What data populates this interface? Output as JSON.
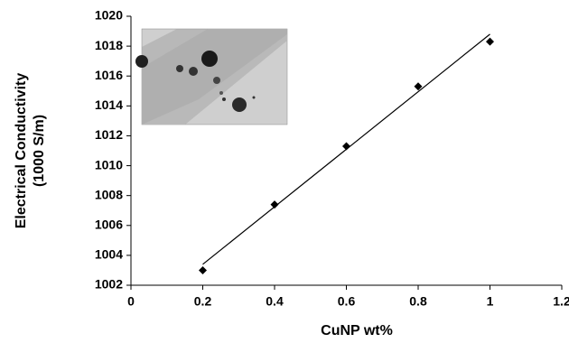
{
  "chart_data": {
    "type": "scatter",
    "x_label": "CuNP wt%",
    "y_label": [
      "Electrical Conductivity",
      "(1000 S/m)"
    ],
    "x": [
      0.2,
      0.4,
      0.6,
      0.8,
      1.0
    ],
    "values": [
      1003.0,
      1007.4,
      1011.3,
      1015.3,
      1018.3
    ],
    "color": "#000000",
    "trendline": {
      "x": [
        0.2,
        1.0
      ],
      "values": [
        1003.4,
        1018.8
      ],
      "color": "#000000"
    },
    "xlim": [
      0,
      1.2
    ],
    "xticks": [
      0,
      0.2,
      0.4,
      0.6,
      0.8,
      1,
      1.2
    ],
    "ylim": [
      1002,
      1020
    ],
    "yticks": [
      1002,
      1004,
      1006,
      1008,
      1010,
      1012,
      1014,
      1016,
      1018,
      1020
    ],
    "grid": false
  }
}
